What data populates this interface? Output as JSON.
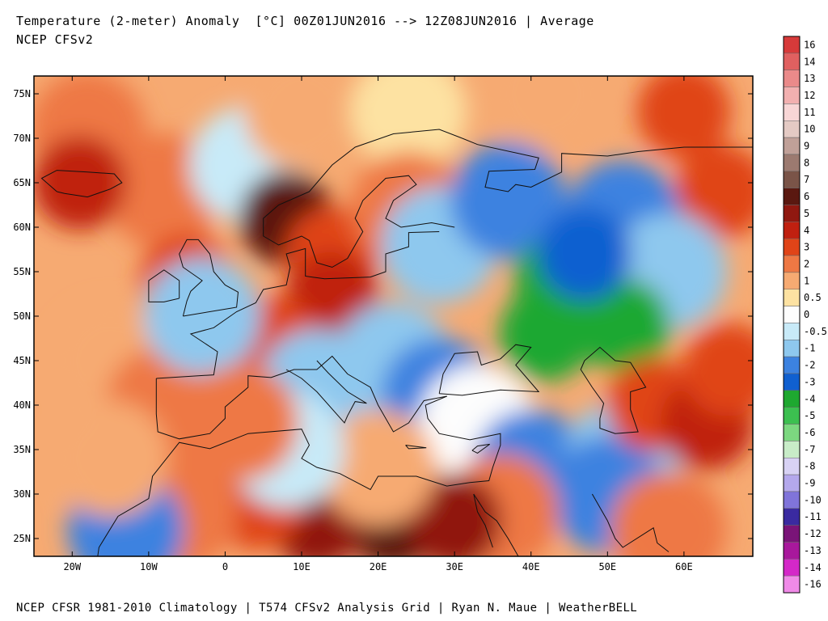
{
  "header": {
    "title": "Temperature (2-meter) Anomaly  [°C] 00Z01JUN2016 --> 12Z08JUN2016 | Average",
    "model": "NCEP CFSv2"
  },
  "footer": {
    "credit": "NCEP CFSR 1981-2010 Climatology | T574 CFSv2 Analysis Grid | Ryan N. Maue | WeatherBELL"
  },
  "map": {
    "region": "Europe / North Africa / Middle East",
    "lon_range": [
      -25,
      69
    ],
    "lat_range": [
      23,
      77
    ],
    "lon_ticks": [
      {
        "value": -20,
        "label": "20W"
      },
      {
        "value": -10,
        "label": "10W"
      },
      {
        "value": 0,
        "label": "0"
      },
      {
        "value": 10,
        "label": "10E"
      },
      {
        "value": 20,
        "label": "20E"
      },
      {
        "value": 30,
        "label": "30E"
      },
      {
        "value": 40,
        "label": "40E"
      },
      {
        "value": 50,
        "label": "50E"
      },
      {
        "value": 60,
        "label": "60E"
      }
    ],
    "lat_ticks": [
      {
        "value": 75,
        "label": "75N"
      },
      {
        "value": 70,
        "label": "70N"
      },
      {
        "value": 65,
        "label": "65N"
      },
      {
        "value": 60,
        "label": "60N"
      },
      {
        "value": 55,
        "label": "55N"
      },
      {
        "value": 50,
        "label": "50N"
      },
      {
        "value": 45,
        "label": "45N"
      },
      {
        "value": 40,
        "label": "40N"
      },
      {
        "value": 35,
        "label": "35N"
      },
      {
        "value": 30,
        "label": "30N"
      },
      {
        "value": 25,
        "label": "25N"
      }
    ],
    "anomaly_regions": [
      {
        "lon": -18,
        "lat": 71,
        "value": 2
      },
      {
        "lon": -8,
        "lat": 64,
        "value": 2
      },
      {
        "lon": -19,
        "lat": 65,
        "value": 4
      },
      {
        "lon": -15,
        "lat": 45,
        "value": 1
      },
      {
        "lon": -8,
        "lat": 40,
        "value": 2
      },
      {
        "lon": 3,
        "lat": 67,
        "value": -0.5
      },
      {
        "lon": 10,
        "lat": 73,
        "value": 1
      },
      {
        "lon": 24,
        "lat": 73,
        "value": 0.5
      },
      {
        "lon": 42,
        "lat": 75,
        "value": 1
      },
      {
        "lon": 60,
        "lat": 73,
        "value": 3
      },
      {
        "lon": 65,
        "lat": 64,
        "value": 3
      },
      {
        "lon": 8,
        "lat": 61,
        "value": 6
      },
      {
        "lon": 14,
        "lat": 57,
        "value": 3
      },
      {
        "lon": 14,
        "lat": 52,
        "value": 4
      },
      {
        "lon": 6,
        "lat": 47,
        "value": 3
      },
      {
        "lon": -5,
        "lat": 54,
        "value": 3
      },
      {
        "lon": 24,
        "lat": 62,
        "value": 2
      },
      {
        "lon": -3,
        "lat": 50,
        "value": -1
      },
      {
        "lon": 28,
        "lat": 58,
        "value": -1
      },
      {
        "lon": 22,
        "lat": 45,
        "value": -1.5
      },
      {
        "lon": 12,
        "lat": 42,
        "value": -1
      },
      {
        "lon": 37,
        "lat": 63,
        "value": -2
      },
      {
        "lon": 52,
        "lat": 61,
        "value": -2
      },
      {
        "lon": 58,
        "lat": 55,
        "value": -1
      },
      {
        "lon": 44,
        "lat": 54,
        "value": -4
      },
      {
        "lon": 42,
        "lat": 48,
        "value": -4
      },
      {
        "lon": 52,
        "lat": 49,
        "value": -4
      },
      {
        "lon": 47,
        "lat": 57,
        "value": -3
      },
      {
        "lon": 28,
        "lat": 41,
        "value": -2
      },
      {
        "lon": 33,
        "lat": 38,
        "value": 0
      },
      {
        "lon": 40,
        "lat": 33,
        "value": -2
      },
      {
        "lon": 52,
        "lat": 34,
        "value": -1.5
      },
      {
        "lon": 50,
        "lat": 30,
        "value": -2
      },
      {
        "lon": 56,
        "lat": 40,
        "value": 3
      },
      {
        "lon": 63,
        "lat": 38,
        "value": 4
      },
      {
        "lon": 66,
        "lat": 44,
        "value": 3
      },
      {
        "lon": 58,
        "lat": 26,
        "value": 2
      },
      {
        "lon": 36,
        "lat": 28,
        "value": 2
      },
      {
        "lon": 22,
        "lat": 27,
        "value": 6
      },
      {
        "lon": 30,
        "lat": 27,
        "value": 5
      },
      {
        "lon": 12,
        "lat": 27,
        "value": 5
      },
      {
        "lon": 4,
        "lat": 29,
        "value": 3
      },
      {
        "lon": -6,
        "lat": 28,
        "value": 2
      },
      {
        "lon": -13,
        "lat": 26,
        "value": -2
      },
      {
        "lon": 20,
        "lat": 33,
        "value": 1
      },
      {
        "lon": 8,
        "lat": 35,
        "value": -0.5
      },
      {
        "lon": -15,
        "lat": 34,
        "value": 1
      },
      {
        "lon": 2,
        "lat": 38,
        "value": 2
      }
    ]
  },
  "colorbar": {
    "levels": [
      {
        "label": "16",
        "color": "#d73a3a"
      },
      {
        "label": "14",
        "color": "#e06060"
      },
      {
        "label": "13",
        "color": "#ea8a8a"
      },
      {
        "label": "12",
        "color": "#f2b0b0"
      },
      {
        "label": "11",
        "color": "#f8d6d6"
      },
      {
        "label": "10",
        "color": "#e4cac4"
      },
      {
        "label": "9",
        "color": "#c0a098"
      },
      {
        "label": "8",
        "color": "#9c7a70"
      },
      {
        "label": "7",
        "color": "#7a5448"
      },
      {
        "label": "6",
        "color": "#5a1810"
      },
      {
        "label": "5",
        "color": "#901810"
      },
      {
        "label": "4",
        "color": "#c02010"
      },
      {
        "label": "3",
        "color": "#e04418"
      },
      {
        "label": "2",
        "color": "#ee7844"
      },
      {
        "label": "1",
        "color": "#f6aa72"
      },
      {
        "label": "0.5",
        "color": "#fde2a2"
      },
      {
        "label": "0",
        "color": "#fdfdfd"
      },
      {
        "label": "-0.5",
        "color": "#c8eaf8"
      },
      {
        "label": "-1",
        "color": "#8ec8ee"
      },
      {
        "label": "-2",
        "color": "#3c82e0"
      },
      {
        "label": "-3",
        "color": "#1060d0"
      },
      {
        "label": "-4",
        "color": "#1ea830"
      },
      {
        "label": "-5",
        "color": "#3cc050"
      },
      {
        "label": "-6",
        "color": "#7cd880"
      },
      {
        "label": "-7",
        "color": "#c8ecc8"
      },
      {
        "label": "-8",
        "color": "#d8d2f4"
      },
      {
        "label": "-9",
        "color": "#b4a8ec"
      },
      {
        "label": "-10",
        "color": "#8074da"
      },
      {
        "label": "-11",
        "color": "#3a2aa0"
      },
      {
        "label": "-12",
        "color": "#7a1478"
      },
      {
        "label": "-13",
        "color": "#a8189c"
      },
      {
        "label": "-14",
        "color": "#d428c8"
      },
      {
        "label": "-16",
        "color": "#f08ae8"
      }
    ]
  }
}
